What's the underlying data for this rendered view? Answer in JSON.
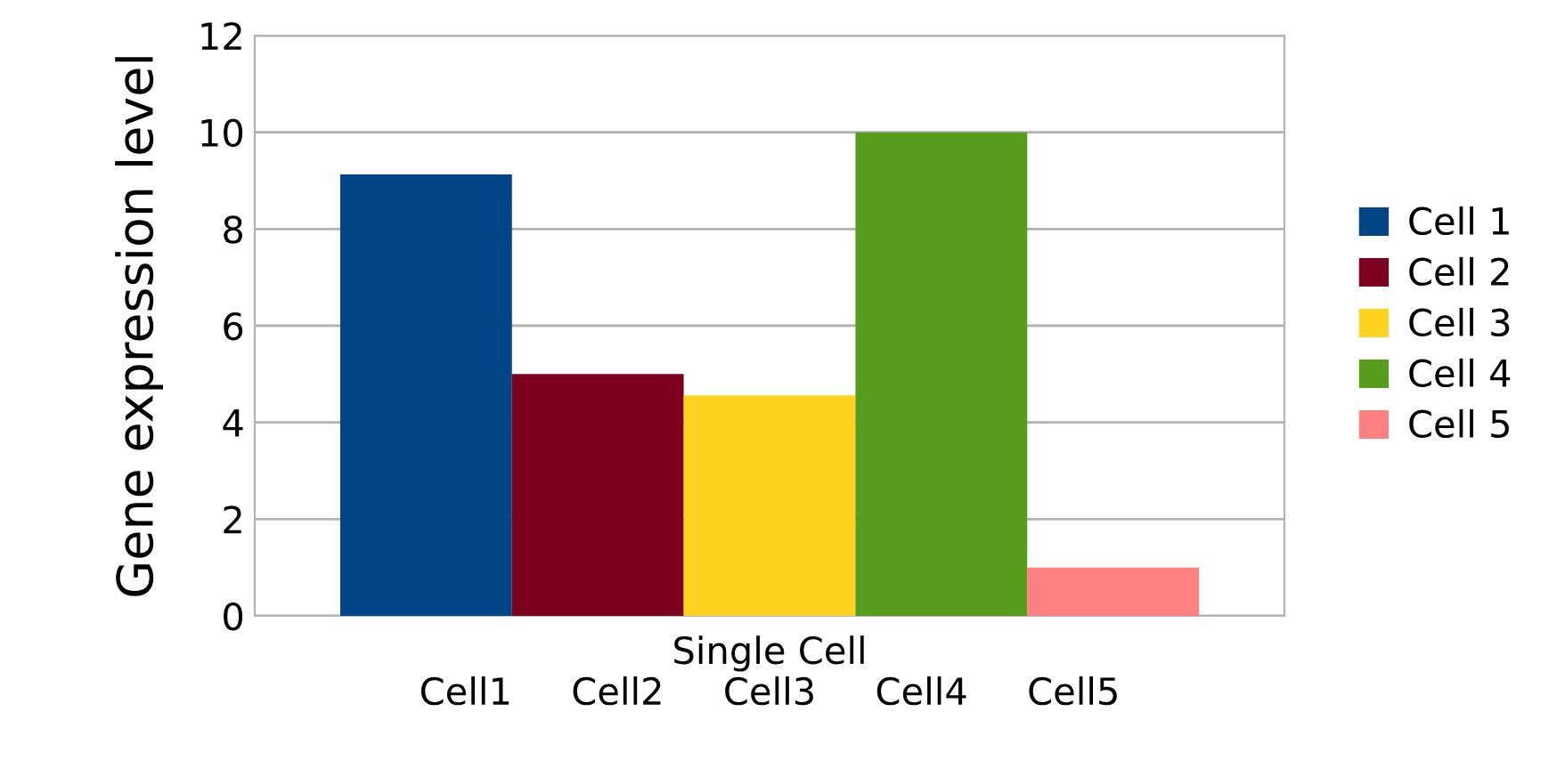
{
  "chart_data": {
    "type": "bar",
    "categories": [
      "Single Cell"
    ],
    "xlabel": "Cell1     Cell2     Cell3     Cell4     Cell5",
    "ylabel": "Gene expression level",
    "series": [
      {
        "name": "Cell 1",
        "color": "#004586",
        "values": [
          9.13
        ]
      },
      {
        "name": "Cell 2",
        "color": "#7e0021",
        "values": [
          5.0
        ]
      },
      {
        "name": "Cell 3",
        "color": "#ffd320",
        "values": [
          4.56
        ]
      },
      {
        "name": "Cell 4",
        "color": "#579d1c",
        "values": [
          10.0
        ]
      },
      {
        "name": "Cell 5",
        "color": "#ff8080",
        "values": [
          1.0
        ]
      }
    ],
    "ylim": [
      0,
      12
    ],
    "yticks": [
      0,
      2,
      4,
      6,
      8,
      10,
      12
    ],
    "grid": "y",
    "legend": "right"
  }
}
